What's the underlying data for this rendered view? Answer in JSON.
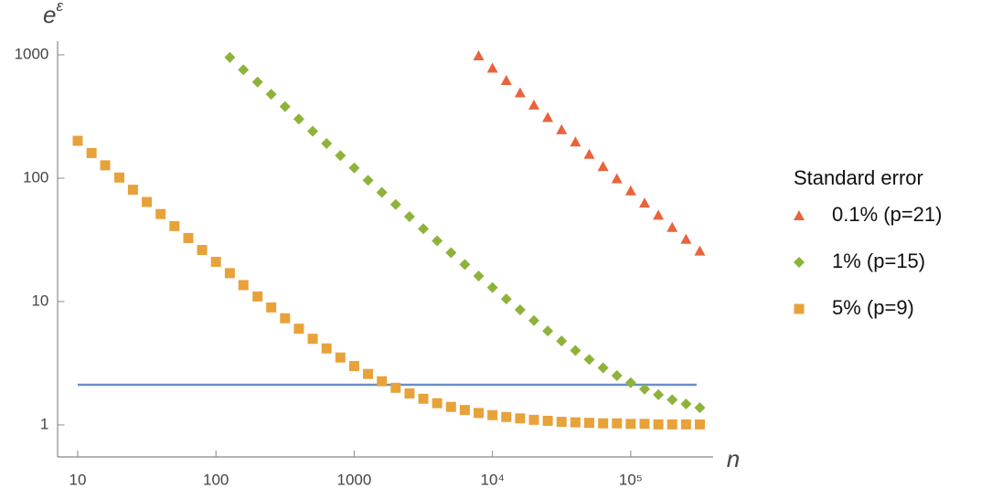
{
  "chart_data": {
    "type": "scatter",
    "xlabel": "n",
    "ylabel": "eε",
    "xscale": "log",
    "yscale": "log",
    "xlim": [
      7.2,
      360000
    ],
    "ylim": [
      0.55,
      1000
    ],
    "xticks": [
      10,
      100,
      1000,
      {
        "value": 10000,
        "label": "10⁴"
      },
      {
        "value": 100000,
        "label": "10⁵"
      }
    ],
    "yticks": [
      1,
      10,
      100,
      1000
    ],
    "legend": {
      "title": "Standard error",
      "position": "right"
    },
    "reference_line": {
      "color": "#6a8fc8",
      "x": [
        10,
        300000
      ],
      "values": [
        2.117,
        2.117
      ]
    },
    "series": [
      {
        "name": "0.1% (p=21)",
        "color": "#e8643c",
        "marker": "triangle",
        "x": [
          7943,
          10000,
          12589,
          15849,
          19953,
          25119,
          31623,
          39811,
          50119,
          63096,
          79433,
          100000,
          125893,
          158489,
          199526,
          251189,
          316228
        ],
        "values": [
          983,
          781,
          620,
          493,
          392,
          311,
          247.6,
          196.8,
          156.6,
          124.6,
          99.2,
          79.0,
          62.9,
          50.2,
          40.0,
          32.0,
          25.7
        ]
      },
      {
        "name": "1% (p=15)",
        "color": "#8db33a",
        "marker": "diamond",
        "x": [
          126,
          158,
          200,
          251,
          316,
          398,
          501,
          631,
          794,
          1000,
          1259,
          1585,
          1995,
          2512,
          3162,
          3981,
          5012,
          6310,
          7943,
          10000,
          12589,
          15849,
          19953,
          25119,
          31623,
          39811,
          50119,
          63096,
          79433,
          100000,
          125893,
          158489,
          199526,
          251189,
          316228
        ],
        "values": [
          954,
          757,
          602,
          479,
          380.5,
          302,
          240,
          191,
          152.4,
          121,
          96.3,
          76.7,
          61.2,
          48.8,
          38.9,
          31.1,
          24.9,
          20.0,
          16.1,
          13.0,
          10.5,
          8.57,
          7.02,
          5.78,
          4.79,
          4.01,
          3.39,
          2.9,
          2.51,
          2.2,
          1.95,
          1.76,
          1.6,
          1.48,
          1.38
        ]
      },
      {
        "name": "5% (p=9)",
        "color": "#e8a23a",
        "marker": "square",
        "x": [
          10,
          12.6,
          15.8,
          20,
          25.1,
          31.6,
          39.8,
          50.1,
          63.1,
          79.4,
          100,
          126,
          158,
          200,
          251,
          316,
          398,
          501,
          631,
          794,
          1000,
          1259,
          1585,
          1995,
          2512,
          3162,
          3981,
          5012,
          6310,
          7943,
          10000,
          12589,
          15849,
          19953,
          25119,
          31623,
          39811,
          50119,
          63096,
          79433,
          100000,
          125893,
          158489,
          199526,
          251189,
          316228
        ],
        "values": [
          201,
          159.9,
          127.2,
          101.2,
          80.6,
          64.2,
          51.2,
          40.9,
          32.7,
          26.2,
          21,
          17.0,
          13.6,
          11.0,
          8.96,
          7.32,
          6.02,
          4.99,
          4.17,
          3.52,
          3.0,
          2.59,
          2.26,
          2.0,
          1.8,
          1.63,
          1.5,
          1.4,
          1.32,
          1.25,
          1.2,
          1.16,
          1.13,
          1.1,
          1.08,
          1.06,
          1.05,
          1.04,
          1.03,
          1.03,
          1.02,
          1.02,
          1.01,
          1.01,
          1.01,
          1.01
        ]
      }
    ]
  }
}
